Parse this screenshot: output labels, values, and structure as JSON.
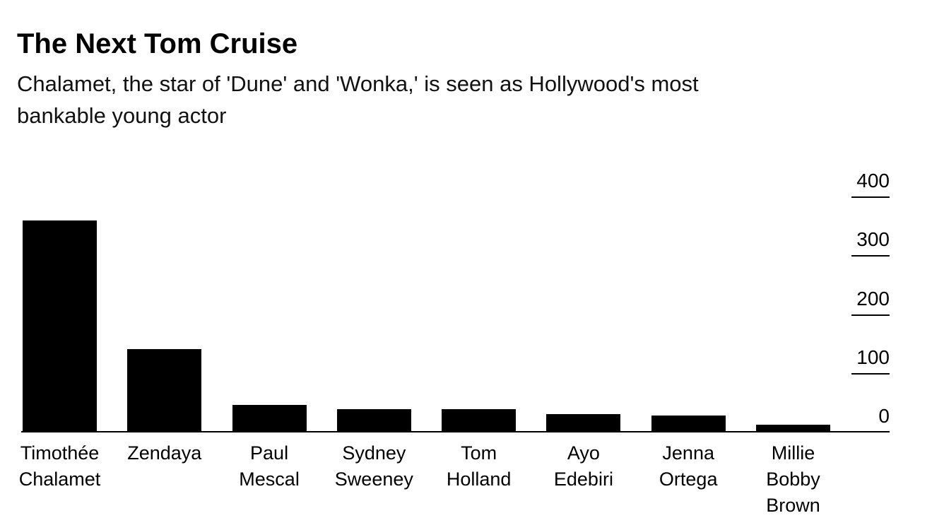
{
  "header": {
    "title": "The Next Tom Cruise",
    "subtitle_lines": [
      "Chalamet, the star of 'Dune' and 'Wonka,' is seen as Hollywood's most",
      "bankable young actor"
    ]
  },
  "chart_data": {
    "type": "bar",
    "title": "The Next Tom Cruise",
    "subtitle": "Chalamet, the star of 'Dune' and 'Wonka,' is seen as Hollywood's most bankable young actor",
    "categories": [
      "Timothée Chalamet",
      "Zendaya",
      "Paul Mescal",
      "Sydney Sweeney",
      "Tom Holland",
      "Ayo Edebiri",
      "Jenna Ortega",
      "Millie Bobby Brown"
    ],
    "category_label_lines": [
      [
        "Timothée",
        "Chalamet"
      ],
      [
        "Zendaya"
      ],
      [
        "Paul",
        "Mescal"
      ],
      [
        "Sydney",
        "Sweeney"
      ],
      [
        "Tom",
        "Holland"
      ],
      [
        "Ayo",
        "Edebiri"
      ],
      [
        "Jenna",
        "Ortega"
      ],
      [
        "Millie",
        "Bobby",
        "Brown"
      ]
    ],
    "values": [
      360,
      142,
      47,
      40,
      40,
      31,
      29,
      13
    ],
    "y_ticks": [
      0,
      100,
      200,
      300,
      400
    ],
    "ylim": [
      0,
      445
    ],
    "xlabel": "",
    "ylabel": "",
    "grid": false,
    "legend": false,
    "y_axis_side": "right",
    "bar_color": "#000000",
    "axis_color": "#000000",
    "text_color": "#000000",
    "background_color": "#ffffff"
  }
}
